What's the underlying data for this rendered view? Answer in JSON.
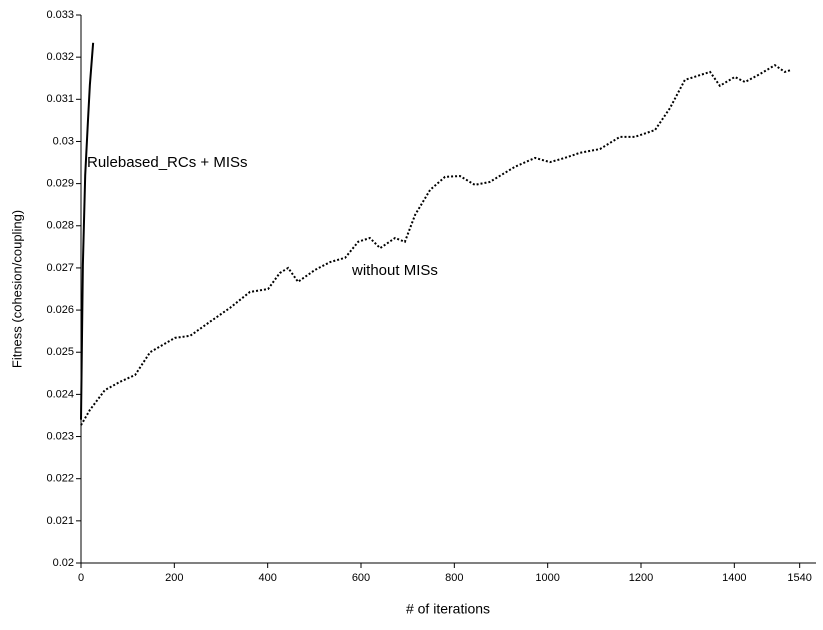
{
  "chart_data": {
    "type": "line",
    "x_label": "# of iterations",
    "y_label": "Fitness (cohesion/coupling)",
    "xlim": [
      0,
      1575
    ],
    "ylim": [
      0.02,
      0.033
    ],
    "xticks": [
      0,
      200,
      400,
      600,
      800,
      1000,
      1200,
      1400,
      1540
    ],
    "yticks": [
      0.02,
      0.021,
      0.022,
      0.023,
      0.024,
      0.025,
      0.026,
      0.027,
      0.028,
      0.029,
      0.03,
      0.031,
      0.032,
      0.033
    ],
    "series": [
      {
        "name": "Rulebased_RCs + MISs",
        "color": "#000000",
        "line_style": "solid",
        "x": [
          0,
          4,
          9,
          15,
          19,
          26
        ],
        "values": [
          0.0234,
          0.02707,
          0.0292,
          0.03051,
          0.03134,
          0.03234
        ]
      },
      {
        "name": "without MISs",
        "color": "#000000",
        "line_style": "dotted",
        "x": [
          0,
          19,
          51,
          84,
          116,
          148,
          201,
          234,
          276,
          319,
          362,
          401,
          426,
          444,
          465,
          501,
          534,
          566,
          594,
          619,
          641,
          673,
          694,
          716,
          748,
          780,
          812,
          844,
          876,
          930,
          973,
          1005,
          1037,
          1069,
          1112,
          1155,
          1187,
          1230,
          1262,
          1294,
          1348,
          1369,
          1401,
          1423,
          1455,
          1487,
          1508,
          1523
        ],
        "values": [
          0.02327,
          0.02363,
          0.0241,
          0.0243,
          0.02446,
          0.025,
          0.02534,
          0.02539,
          0.02572,
          0.02605,
          0.02643,
          0.0265,
          0.02688,
          0.027,
          0.02667,
          0.02695,
          0.02714,
          0.02724,
          0.02762,
          0.02771,
          0.02747,
          0.02771,
          0.02762,
          0.02826,
          0.02885,
          0.02916,
          0.02918,
          0.02897,
          0.02904,
          0.0294,
          0.02961,
          0.02951,
          0.02961,
          0.02973,
          0.02982,
          0.03011,
          0.03011,
          0.03027,
          0.03079,
          0.03146,
          0.03165,
          0.03132,
          0.03153,
          0.03141,
          0.0316,
          0.03181,
          0.03165,
          0.0317
        ]
      }
    ]
  }
}
